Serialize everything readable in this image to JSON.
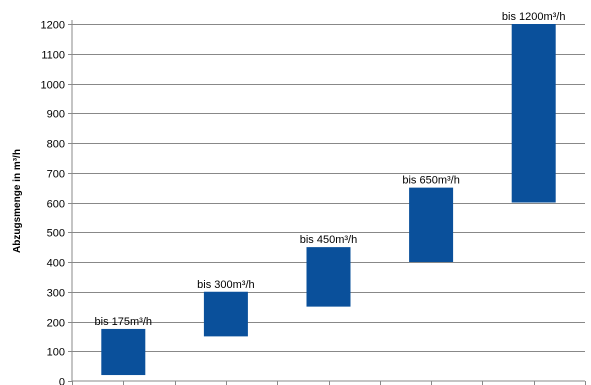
{
  "chart_data": {
    "type": "bar",
    "subtype": "floating-range",
    "ylabel": "Abzugsmenge in m³/h",
    "ylim": [
      0,
      1200
    ],
    "ytick_step": 100,
    "grid": true,
    "legend": "none",
    "bar_color": "#0a509b",
    "series": [
      {
        "values": [
          {
            "label": "bis 175m³/h",
            "low": 20,
            "high": 175
          },
          {
            "label": "bis 300m³/h",
            "low": 150,
            "high": 300
          },
          {
            "label": "bis 450m³/h",
            "low": 250,
            "high": 450
          },
          {
            "label": "bis 650m³/h",
            "low": 400,
            "high": 650
          },
          {
            "label": "bis 1200m³/h",
            "low": 600,
            "high": 1200
          }
        ]
      }
    ]
  }
}
